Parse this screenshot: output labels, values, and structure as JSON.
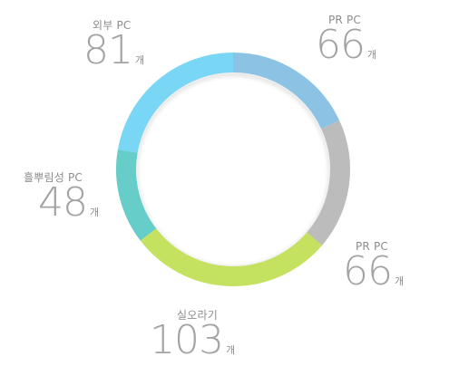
{
  "chart_data": {
    "type": "pie",
    "style": "donut",
    "unit": "개",
    "series": [
      {
        "name": "PR PC",
        "value": 66,
        "color": "#8cc3e4"
      },
      {
        "name": "PR PC",
        "value": 66,
        "color": "#bcbcbc"
      },
      {
        "name": "실오라기",
        "value": 103,
        "color": "#c5e160"
      },
      {
        "name": "흘뿌림성 PC",
        "value": 48,
        "color": "#66cdc8"
      },
      {
        "name": "외부 PC",
        "value": 81,
        "color": "#7ad6f5"
      }
    ]
  }
}
